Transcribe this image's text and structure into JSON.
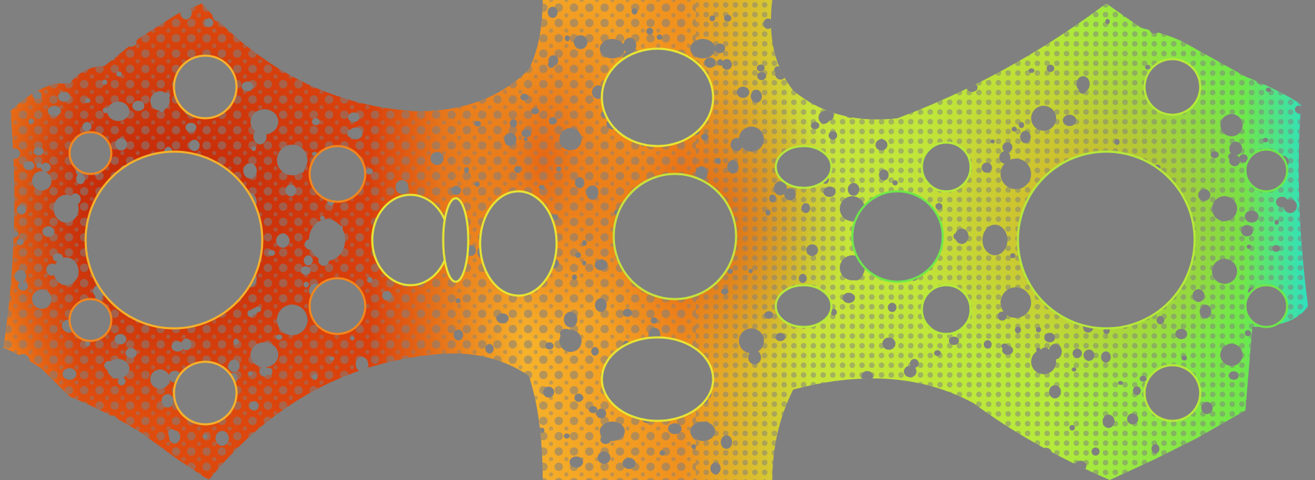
{
  "canvas": {
    "background_color": "#808080",
    "hole_color": "#808080"
  },
  "palette": {
    "deep_red": "#b81a08",
    "red_orange": "#e0500e",
    "orange": "#f3861c",
    "amber": "#f6b22a",
    "yellow": "#e8e632",
    "yellow_green": "#b6ea3a",
    "green": "#6fe84a",
    "cyan": "#2ee0c0"
  },
  "regions": [
    {
      "name": "left-lobe",
      "tone": "deep_red"
    },
    {
      "name": "center-lobe",
      "tone": "orange"
    },
    {
      "name": "right-lobe",
      "tone": "yellow_green"
    }
  ]
}
